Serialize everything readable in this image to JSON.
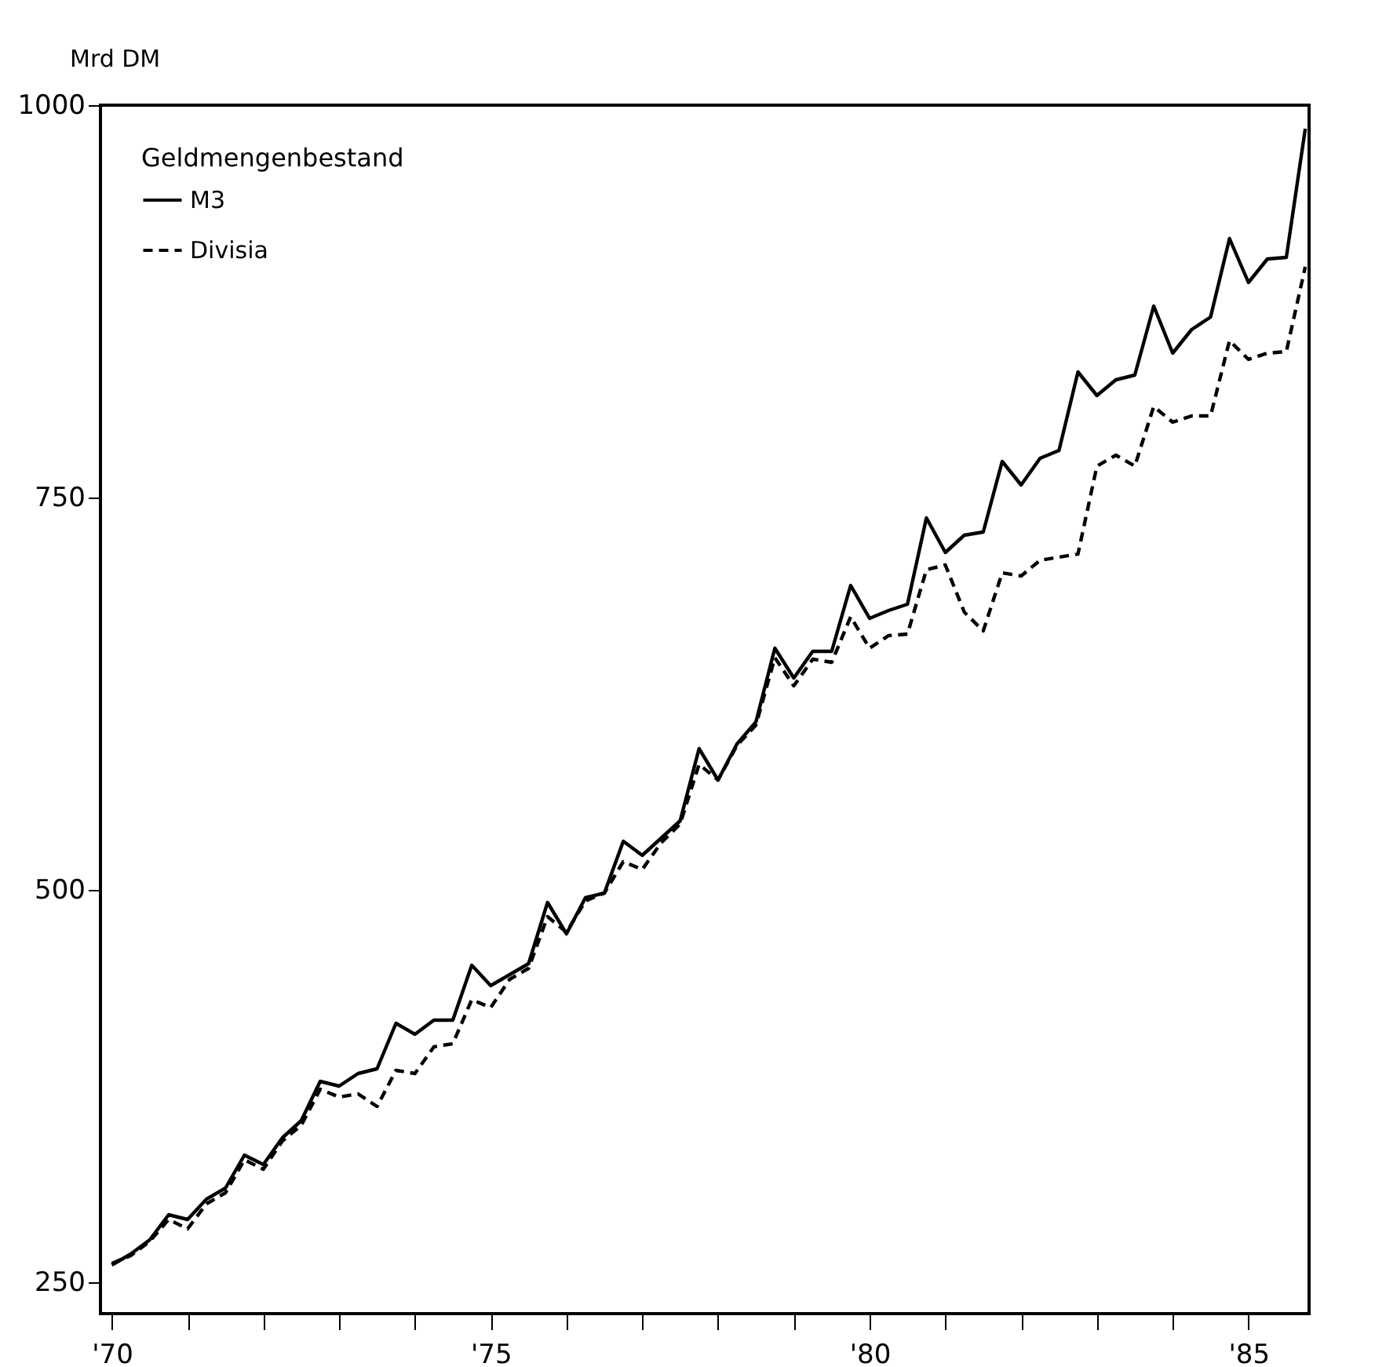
{
  "chart_data": {
    "type": "line",
    "ylabel": "Mrd DM",
    "legend_title": "Geldmengenbestand",
    "x": [
      1970,
      1970.25,
      1970.5,
      1970.75,
      1971,
      1971.25,
      1971.5,
      1971.75,
      1972,
      1972.25,
      1972.5,
      1972.75,
      1973,
      1973.25,
      1973.5,
      1973.75,
      1974,
      1974.25,
      1974.5,
      1974.75,
      1975,
      1975.25,
      1975.5,
      1975.75,
      1976,
      1976.25,
      1976.5,
      1976.75,
      1977,
      1977.25,
      1977.5,
      1977.75,
      1978,
      1978.25,
      1978.5,
      1978.75,
      1979,
      1979.25,
      1979.5,
      1979.75,
      1980,
      1980.25,
      1980.5,
      1980.75,
      1981,
      1981.25,
      1981.5,
      1981.75,
      1982,
      1982.25,
      1982.5,
      1982.75,
      1983,
      1983.25,
      1983.5,
      1983.75,
      1984,
      1984.25,
      1984.5,
      1984.75,
      1985,
      1985.25,
      1985.5,
      1985.75
    ],
    "series": [
      {
        "name": "M3",
        "color": "#000000",
        "line_style": "solid",
        "values": [
          261,
          268,
          277,
          293,
          290,
          303,
          310,
          331,
          325,
          342,
          353,
          378,
          375,
          383,
          386,
          415,
          408,
          417,
          417,
          452,
          439,
          446,
          453,
          492,
          472,
          495,
          498,
          531,
          522,
          533,
          544,
          590,
          570,
          593,
          607,
          654,
          635,
          652,
          652,
          694,
          673,
          678,
          682,
          737,
          715,
          726,
          728,
          773,
          758,
          775,
          780,
          830,
          815,
          825,
          828,
          872,
          842,
          857,
          865,
          915,
          887,
          902,
          903,
          985
        ]
      },
      {
        "name": "Divisia",
        "color": "#000000",
        "line_style": "dashed",
        "values": [
          262,
          267,
          276,
          290,
          284,
          300,
          307,
          328,
          322,
          340,
          350,
          373,
          368,
          370,
          362,
          385,
          383,
          400,
          402,
          430,
          425,
          443,
          450,
          483,
          473,
          493,
          498,
          518,
          513,
          530,
          542,
          580,
          570,
          592,
          605,
          648,
          630,
          647,
          645,
          674,
          654,
          662,
          663,
          704,
          707,
          677,
          665,
          702,
          700,
          710,
          712,
          714,
          770,
          777,
          770,
          808,
          798,
          802,
          802,
          850,
          838,
          842,
          843,
          897
        ]
      }
    ],
    "xlim": [
      1969.85,
      1985.8
    ],
    "xticks": [
      {
        "value": 1970,
        "label": "'70"
      },
      {
        "value": 1971,
        "label": null
      },
      {
        "value": 1972,
        "label": null
      },
      {
        "value": 1973,
        "label": null
      },
      {
        "value": 1974,
        "label": null
      },
      {
        "value": 1975,
        "label": "'75"
      },
      {
        "value": 1976,
        "label": null
      },
      {
        "value": 1977,
        "label": null
      },
      {
        "value": 1978,
        "label": null
      },
      {
        "value": 1979,
        "label": null
      },
      {
        "value": 1980,
        "label": "'80"
      },
      {
        "value": 1981,
        "label": null
      },
      {
        "value": 1982,
        "label": null
      },
      {
        "value": 1983,
        "label": null
      },
      {
        "value": 1984,
        "label": null
      },
      {
        "value": 1985,
        "label": "'85"
      }
    ],
    "ylim": [
      230,
      1000
    ],
    "yticks": [
      250,
      500,
      750,
      1000
    ],
    "legend": "top left",
    "grid": false
  }
}
